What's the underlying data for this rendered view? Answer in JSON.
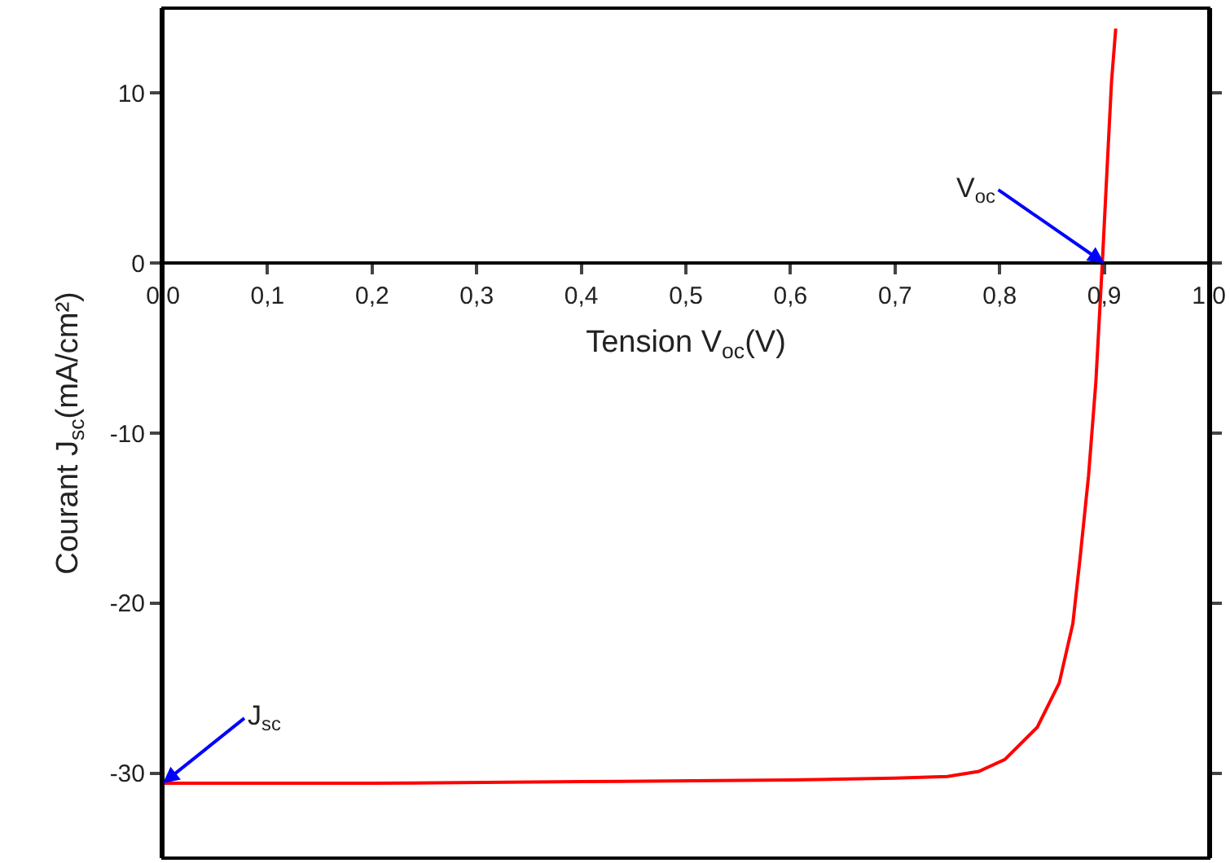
{
  "chart_data": {
    "type": "line",
    "xlabel": "Tension V$_{oc}$(V)",
    "ylabel": "Courant J$_{sc}$(mA/cm²)",
    "xlim": [
      0,
      1
    ],
    "ylim": [
      -35,
      15
    ],
    "xticks": [
      {
        "value": 0,
        "label": "0,0"
      },
      {
        "value": 0.1,
        "label": "0,1"
      },
      {
        "value": 0.2,
        "label": "0,2"
      },
      {
        "value": 0.3,
        "label": "0,3"
      },
      {
        "value": 0.4,
        "label": "0,4"
      },
      {
        "value": 0.5,
        "label": "0,5"
      },
      {
        "value": 0.6,
        "label": "0,6"
      },
      {
        "value": 0.7,
        "label": "0,7"
      },
      {
        "value": 0.8,
        "label": "0,8"
      },
      {
        "value": 0.9,
        "label": "0,9"
      },
      {
        "value": 1,
        "label": "1,0"
      }
    ],
    "yticks": [
      -30,
      -20,
      -10,
      0,
      10
    ],
    "grid": false,
    "marker": "none",
    "line_style": "solid",
    "series": [
      {
        "color": "#ff0000",
        "x": [
          0,
          0.2,
          0.4,
          0.6,
          0.7,
          0.75,
          0.78,
          0.805,
          0.836,
          0.857,
          0.87,
          0.877,
          0.885,
          0.892,
          0.898,
          0.903,
          0.907,
          0.911
        ],
        "values": [
          -30.6,
          -30.6,
          -30.5,
          -30.4,
          -30.3,
          -30.2,
          -29.9,
          -29.2,
          -27.3,
          -24.7,
          -21.2,
          -17.3,
          -12.5,
          -7.0,
          -0.2,
          5.9,
          10.7,
          13.8
        ]
      }
    ],
    "annotations": [
      {
        "text": "V$_{oc}$",
        "x": 0.9,
        "y": 0
      },
      {
        "text": "J$_{sc}$",
        "x": 0,
        "y": -30.6
      }
    ]
  }
}
